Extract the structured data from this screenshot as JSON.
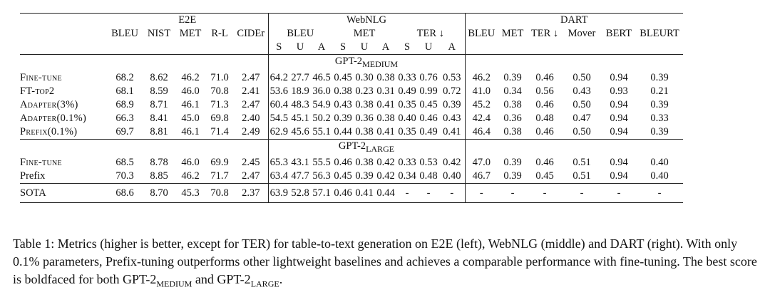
{
  "header": {
    "groups": {
      "e2e": "E2E",
      "webnlg": "WebNLG",
      "dart": "DART"
    },
    "e2e_metrics": [
      "BLEU",
      "NIST",
      "MET",
      "R-L",
      "CIDEr"
    ],
    "webnlg_metrics": [
      "BLEU",
      "MET",
      "TER ↓"
    ],
    "webnlg_sub": [
      "S",
      "U",
      "A"
    ],
    "dart_metrics": [
      "BLEU",
      "MET",
      "TER ↓",
      "Mover",
      "BERT",
      "BLEURT"
    ]
  },
  "sections": [
    {
      "base": "GPT-2",
      "sub": "MEDIUM",
      "rows": [
        {
          "method": "Fine-tune",
          "cells": [
            "68.2",
            "8.62",
            "46.2",
            "71.0",
            "2.47",
            "64.2",
            "27.7",
            "46.5",
            "0.45",
            "0.30",
            "0.38",
            "0.33",
            "0.76",
            "0.53",
            "46.2",
            "0.39",
            "0.46",
            "0.50",
            "0.94",
            "0.39"
          ],
          "bold": [
            2,
            5,
            8,
            11,
            15,
            16,
            17,
            18,
            19
          ]
        },
        {
          "method": "FT-top2",
          "cells": [
            "68.1",
            "8.59",
            "46.0",
            "70.8",
            "2.41",
            "53.6",
            "18.9",
            "36.0",
            "0.38",
            "0.23",
            "0.31",
            "0.49",
            "0.99",
            "0.72",
            "41.0",
            "0.34",
            "0.56",
            "0.43",
            "0.93",
            "0.21"
          ],
          "bold": []
        },
        {
          "method": "Adapter(3%)",
          "cells": [
            "68.9",
            "8.71",
            "46.1",
            "71.3",
            "2.47",
            "60.4",
            "48.3",
            "54.9",
            "0.43",
            "0.38",
            "0.41",
            "0.35",
            "0.45",
            "0.39",
            "45.2",
            "0.38",
            "0.46",
            "0.50",
            "0.94",
            "0.39"
          ],
          "bold": [
            6,
            9,
            10,
            12,
            13,
            16,
            17,
            18,
            19
          ]
        },
        {
          "method": "Adapter(0.1%)",
          "cells": [
            "66.3",
            "8.41",
            "45.0",
            "69.8",
            "2.40",
            "54.5",
            "45.1",
            "50.2",
            "0.39",
            "0.36",
            "0.38",
            "0.40",
            "0.46",
            "0.43",
            "42.4",
            "0.36",
            "0.48",
            "0.47",
            "0.94",
            "0.33"
          ],
          "bold": [
            18
          ]
        },
        {
          "method": "Prefix(0.1%)",
          "cells": [
            "69.7",
            "8.81",
            "46.1",
            "71.4",
            "2.49",
            "62.9",
            "45.6",
            "55.1",
            "0.44",
            "0.38",
            "0.41",
            "0.35",
            "0.49",
            "0.41",
            "46.4",
            "0.38",
            "0.46",
            "0.50",
            "0.94",
            "0.39"
          ],
          "bold": [
            0,
            1,
            3,
            4,
            7,
            9,
            10,
            14,
            16,
            17,
            18,
            19
          ]
        }
      ]
    },
    {
      "base": "GPT-2",
      "sub": "LARGE",
      "rows": [
        {
          "method": "Fine-tune",
          "cells": [
            "68.5",
            "8.78",
            "46.0",
            "69.9",
            "2.45",
            "65.3",
            "43.1",
            "55.5",
            "0.46",
            "0.38",
            "0.42",
            "0.33",
            "0.53",
            "0.42",
            "47.0",
            "0.39",
            "0.46",
            "0.51",
            "0.94",
            "0.40"
          ],
          "bold": [
            5,
            8,
            10,
            11,
            14,
            15,
            17,
            18,
            19
          ]
        },
        {
          "method": "Prefix",
          "cells": [
            "70.3",
            "8.85",
            "46.2",
            "71.7",
            "2.47",
            "63.4",
            "47.7",
            "56.3",
            "0.45",
            "0.39",
            "0.42",
            "0.34",
            "0.48",
            "0.40",
            "46.7",
            "0.39",
            "0.45",
            "0.51",
            "0.94",
            "0.40"
          ],
          "bold": [
            0,
            1,
            2,
            3,
            4,
            6,
            7,
            9,
            10,
            12,
            13,
            15,
            16,
            17,
            18,
            19
          ]
        }
      ]
    }
  ],
  "sota": {
    "method": "SOTA",
    "cells": [
      "68.6",
      "8.70",
      "45.3",
      "70.8",
      "2.37",
      "63.9",
      "52.8",
      "57.1",
      "0.46",
      "0.41",
      "0.44",
      "-",
      "-",
      "-",
      "-",
      "-",
      "-",
      "-",
      "-",
      "-"
    ]
  },
  "caption": {
    "part1": "Table 1:  Metrics (higher is better, except for TER) for table-to-text generation on E2E (left), WebNLG (middle) and DART (right). With only ",
    "percent": "0.1%",
    "part2": " parameters, Prefix-tuning outperforms other lightweight baselines and achieves a comparable performance with fine-tuning. The best score is boldfaced for both ",
    "model1": "GPT-2",
    "model1_sub": "MEDIUM",
    "joiner": " and ",
    "model2": "GPT-2",
    "model2_sub": "LARGE",
    "end": "."
  }
}
